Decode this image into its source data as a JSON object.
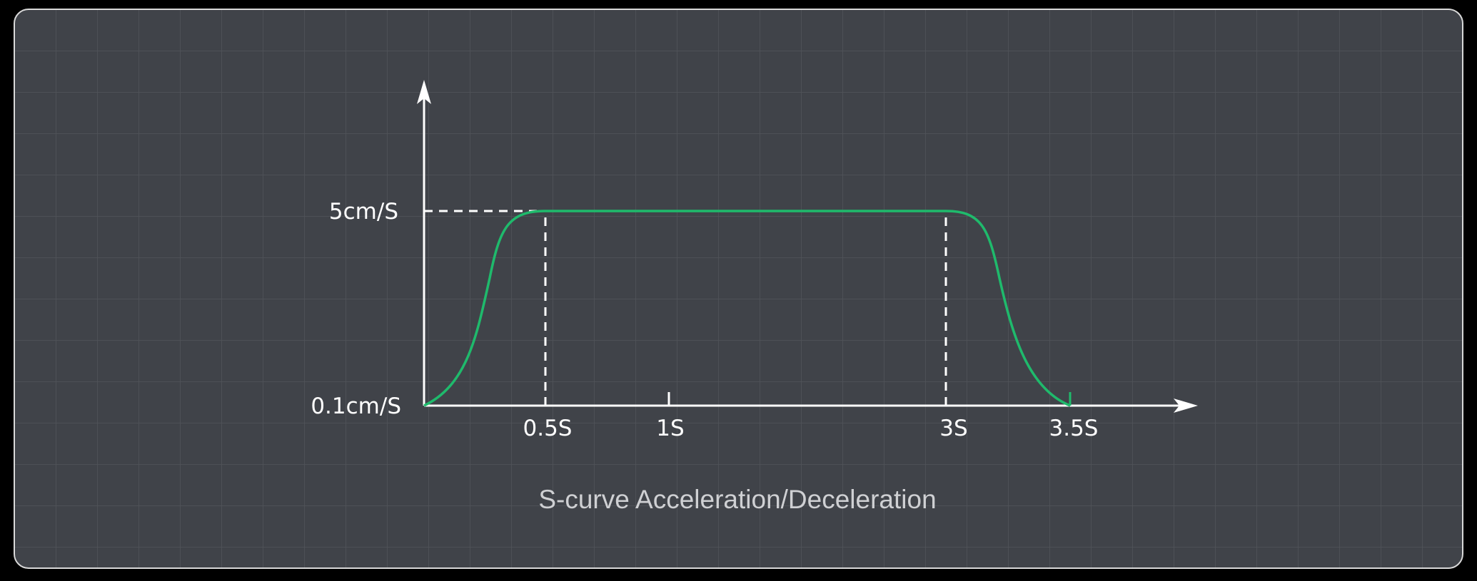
{
  "title": "S-curve Acceleration/Deceleration",
  "y_labels": [
    "5cm/S",
    "0.1cm/S"
  ],
  "x_labels": [
    "0.5S",
    "1S",
    "3S",
    "3.5S"
  ]
}
